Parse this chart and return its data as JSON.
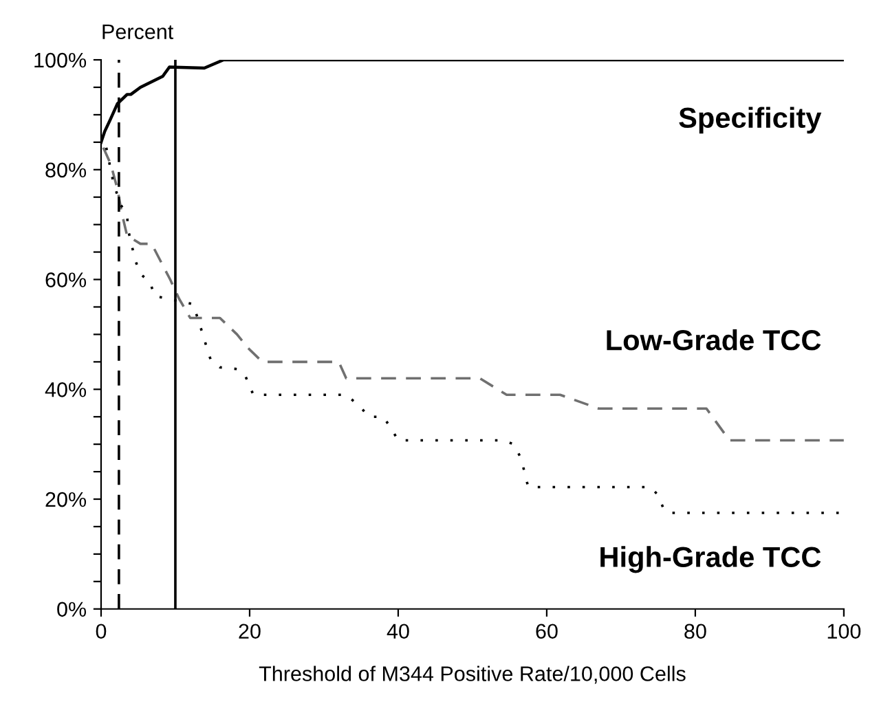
{
  "chart_data": {
    "type": "line",
    "ylabel": "Percent",
    "xlabel": "Threshold of M344 Positive Rate/10,000 Cells",
    "xlim": [
      0,
      100
    ],
    "xticks": [
      0,
      20,
      40,
      60,
      80,
      100
    ],
    "ylim": [
      0,
      100
    ],
    "yticks": [
      {
        "value": 0,
        "label": "0%"
      },
      {
        "value": 5,
        "label": null
      },
      {
        "value": 10,
        "label": null
      },
      {
        "value": 15,
        "label": null
      },
      {
        "value": 20,
        "label": "20%"
      },
      {
        "value": 25,
        "label": null
      },
      {
        "value": 30,
        "label": null
      },
      {
        "value": 35,
        "label": null
      },
      {
        "value": 40,
        "label": "40%"
      },
      {
        "value": 45,
        "label": null
      },
      {
        "value": 50,
        "label": null
      },
      {
        "value": 55,
        "label": null
      },
      {
        "value": 60,
        "label": "60%"
      },
      {
        "value": 65,
        "label": null
      },
      {
        "value": 70,
        "label": null
      },
      {
        "value": 75,
        "label": null
      },
      {
        "value": 80,
        "label": "80%"
      },
      {
        "value": 85,
        "label": null
      },
      {
        "value": 90,
        "label": null
      },
      {
        "value": 95,
        "label": null
      },
      {
        "value": 100,
        "label": "100%"
      }
    ],
    "grid": false,
    "legend": false,
    "marker": "none",
    "ref_lines": [
      {
        "axis": "x",
        "value": 2.4,
        "label": null,
        "color": "#000000",
        "line_style": "dashed"
      },
      {
        "axis": "x",
        "value": 10,
        "label": null,
        "color": "#000000",
        "line_style": "solid"
      }
    ],
    "series": [
      {
        "name": "Specificity",
        "color": "#000000",
        "line_style": "solid",
        "x": [
          0,
          0.5,
          1.2,
          2.2,
          3.5,
          4,
          5.3,
          8.3,
          9.2,
          13.9,
          16.5,
          100
        ],
        "values": [
          85,
          87,
          89,
          92,
          93.7,
          93.7,
          95,
          97,
          98.7,
          98.5,
          100,
          100
        ]
      },
      {
        "name": "Low-Grade TCC",
        "color": "#707070",
        "line_style": "dashed",
        "x": [
          0.3,
          1.3,
          2.2,
          2.8,
          3.5,
          5.3,
          6.8,
          9.3,
          10.5,
          12,
          16,
          18.3,
          19.8,
          21.7,
          32,
          33,
          51,
          54.6,
          61.8,
          67,
          81.5,
          84.6,
          100
        ],
        "values": [
          84,
          81,
          76.5,
          72,
          68,
          66.5,
          66.5,
          60,
          56.5,
          53,
          53,
          50,
          47.5,
          45,
          45,
          42,
          42,
          39,
          39,
          36.5,
          36.5,
          30.7,
          30.7
        ]
      },
      {
        "name": "High-Grade TCC",
        "color": "#000000",
        "line_style": "dotted",
        "x": [
          0.7,
          1.6,
          2.5,
          3.5,
          3.7,
          4.6,
          5.3,
          6.6,
          7.2,
          9,
          12.4,
          13.7,
          14.2,
          14.8,
          16,
          18.3,
          19.4,
          20.5,
          33,
          35,
          36,
          38,
          39,
          40,
          54,
          55.6,
          56.5,
          57,
          57.5,
          74,
          75,
          75.8,
          76.5,
          100
        ],
        "values": [
          84,
          78,
          74,
          71.5,
          68.7,
          63.5,
          61,
          59.5,
          57,
          56.5,
          55.5,
          50,
          47.7,
          45.2,
          44,
          43.7,
          42.5,
          39,
          39,
          36.7,
          35,
          35,
          33,
          30.7,
          30.7,
          30,
          27.5,
          25,
          22.2,
          22.2,
          20.7,
          18,
          17.5,
          17.5
        ]
      }
    ]
  }
}
